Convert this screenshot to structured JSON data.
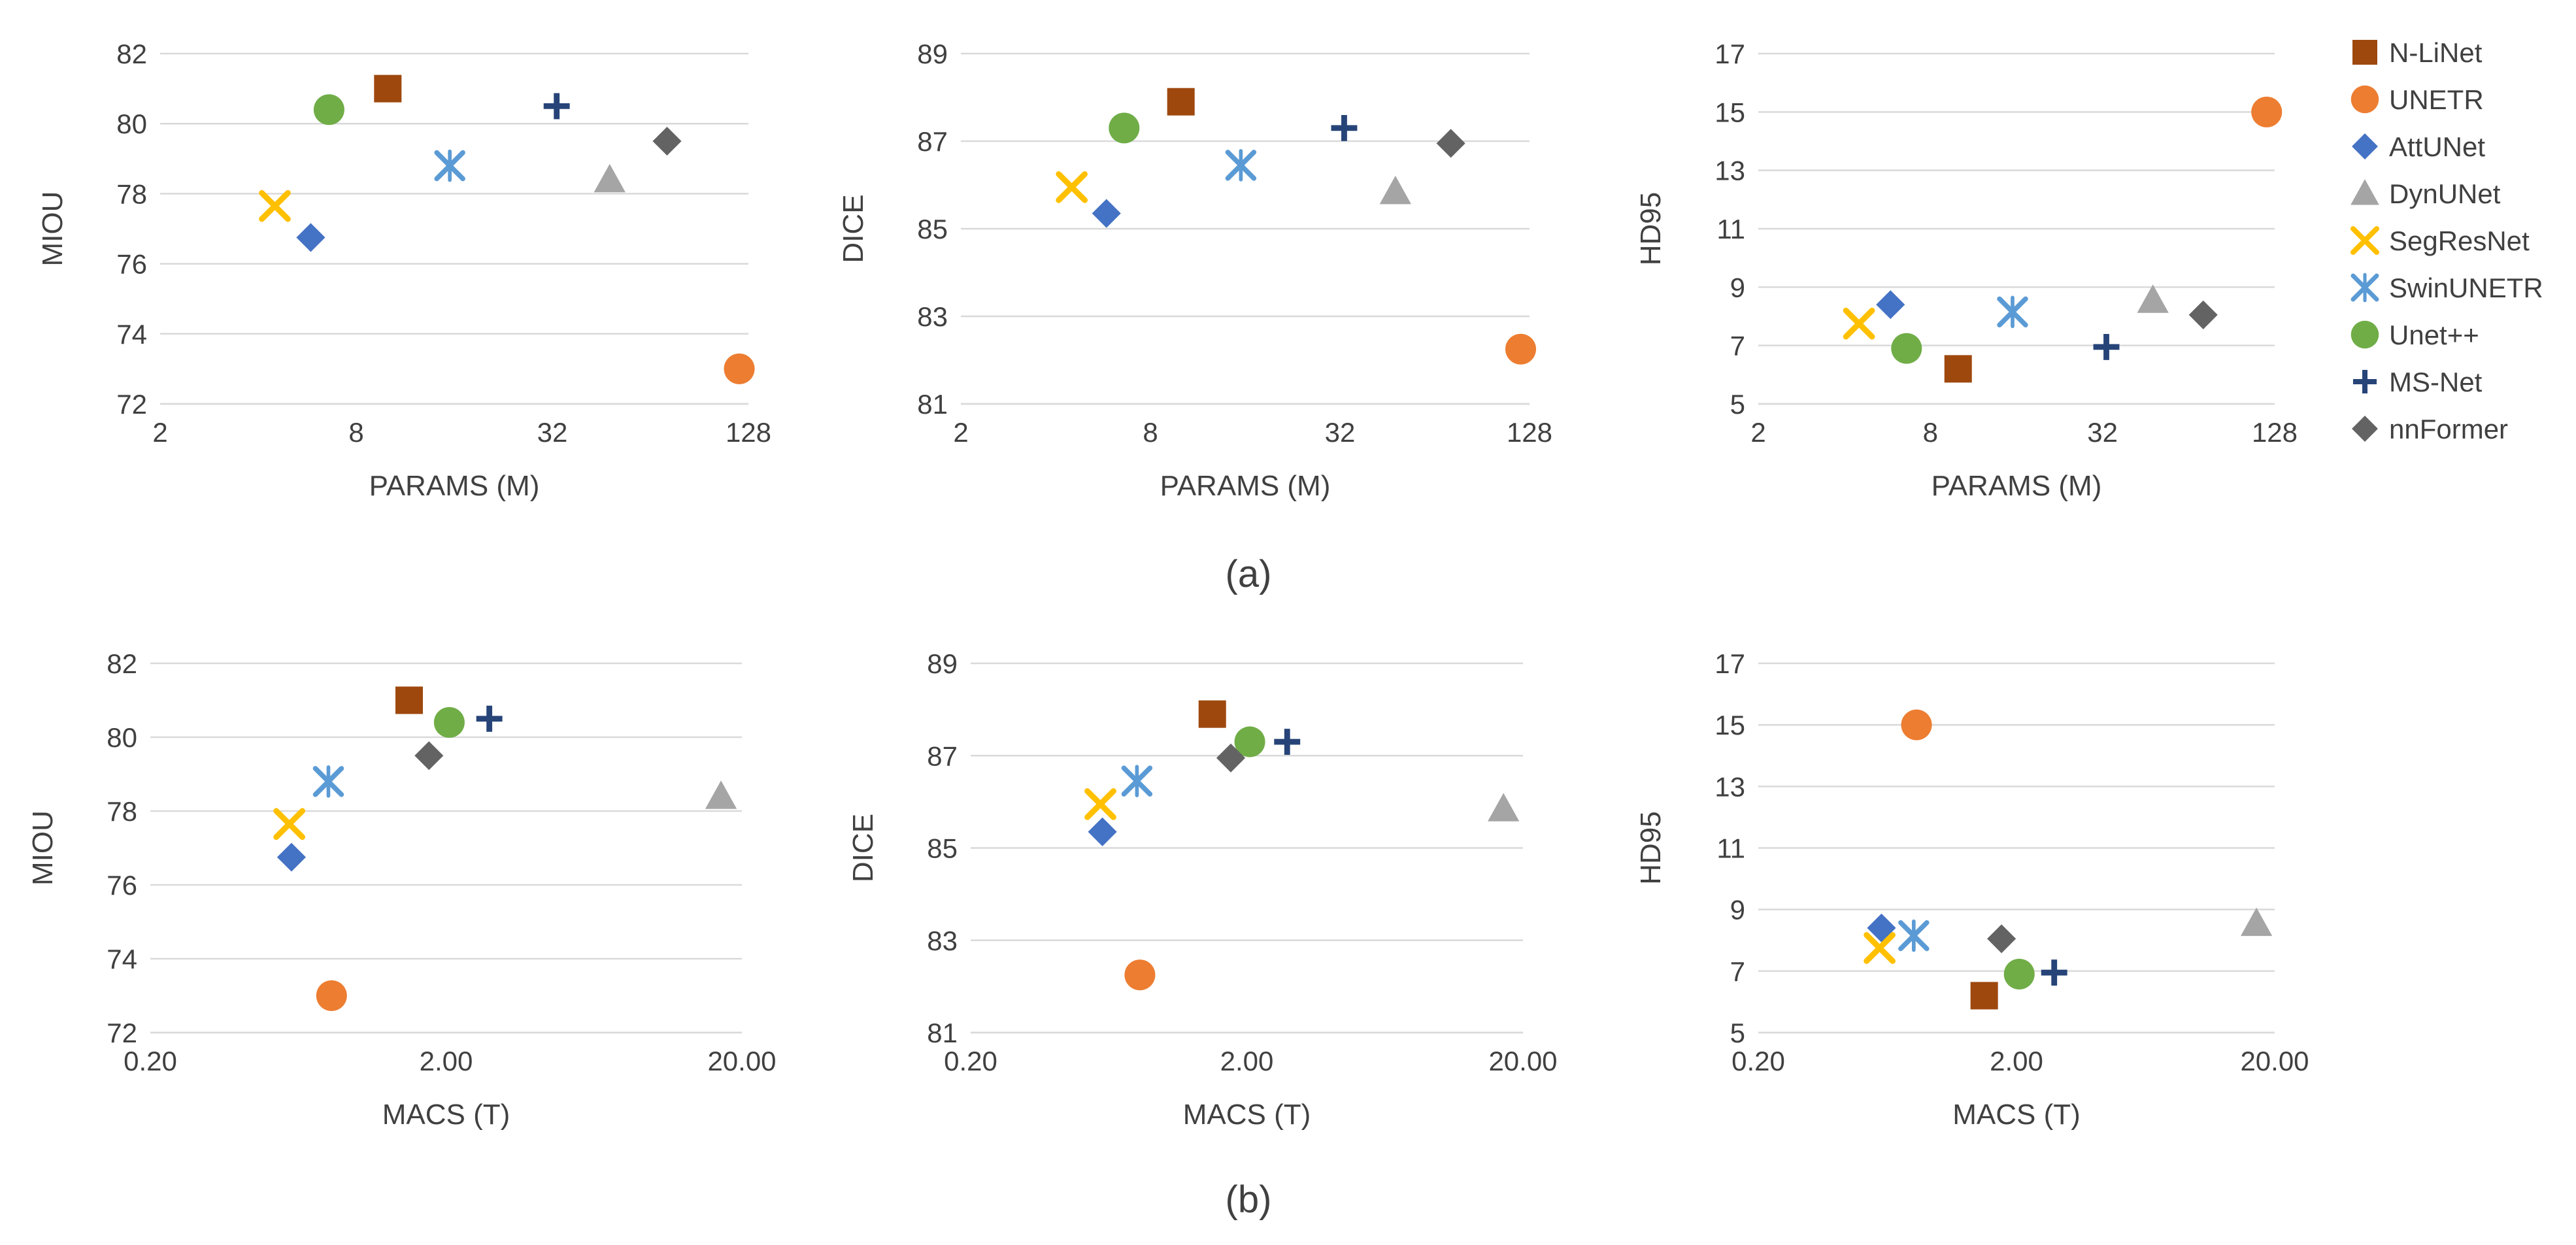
{
  "figure": {
    "legend": [
      {
        "name": "N-LiNet",
        "color": "#9E480E",
        "marker": "square"
      },
      {
        "name": "UNETR",
        "color": "#ED7D31",
        "marker": "circle"
      },
      {
        "name": "AttUNet",
        "color": "#4472C4",
        "marker": "diamond"
      },
      {
        "name": "DynUNet",
        "color": "#A5A5A5",
        "marker": "triangle"
      },
      {
        "name": "SegResNet",
        "color": "#FFC000",
        "marker": "x"
      },
      {
        "name": "SwinUNETR",
        "color": "#5B9BD5",
        "marker": "star"
      },
      {
        "name": "Unet++",
        "color": "#70AD47",
        "marker": "circle"
      },
      {
        "name": "MS-Net",
        "color": "#264478",
        "marker": "plus"
      },
      {
        "name": "nnFormer",
        "color": "#636363",
        "marker": "diamond"
      }
    ],
    "row_labels": [
      "(a)",
      "(b)"
    ]
  },
  "chart_data": [
    {
      "type": "scatter",
      "xscale": "log2",
      "xlabel": "PARAMS (M)",
      "ylabel": "MIOU",
      "xlim": [
        2,
        128
      ],
      "ylim": [
        72,
        82
      ],
      "xticks": [
        "2",
        "8",
        "32",
        "128"
      ],
      "yticks": [
        "72",
        "74",
        "76",
        "78",
        "80",
        "82"
      ],
      "x": {
        "N-LiNet": 10,
        "UNETR": 120,
        "AttUNet": 5.8,
        "DynUNet": 48,
        "SegResNet": 4.5,
        "SwinUNETR": 15.5,
        "Unet++": 6.6,
        "MS-Net": 33,
        "nnFormer": 72
      },
      "y": {
        "N-LiNet": 81.0,
        "UNETR": 73.0,
        "AttUNet": 76.75,
        "DynUNet": 78.4,
        "SegResNet": 77.65,
        "SwinUNETR": 78.8,
        "Unet++": 80.4,
        "MS-Net": 80.5,
        "nnFormer": 79.5
      }
    },
    {
      "type": "scatter",
      "xscale": "log2",
      "xlabel": "PARAMS (M)",
      "ylabel": "DICE",
      "xlim": [
        2,
        128
      ],
      "ylim": [
        81,
        89
      ],
      "xticks": [
        "2",
        "8",
        "32",
        "128"
      ],
      "yticks": [
        "81",
        "83",
        "85",
        "87",
        "89"
      ],
      "x": {
        "N-LiNet": 10,
        "UNETR": 120,
        "AttUNet": 5.8,
        "DynUNet": 48,
        "SegResNet": 4.5,
        "SwinUNETR": 15.5,
        "Unet++": 6.6,
        "MS-Net": 33,
        "nnFormer": 72
      },
      "y": {
        "N-LiNet": 87.9,
        "UNETR": 82.25,
        "AttUNet": 85.35,
        "DynUNet": 85.85,
        "SegResNet": 85.95,
        "SwinUNETR": 86.45,
        "Unet++": 87.3,
        "MS-Net": 87.3,
        "nnFormer": 86.95
      }
    },
    {
      "type": "scatter",
      "xscale": "log2",
      "xlabel": "PARAMS (M)",
      "ylabel": "HD95",
      "xlim": [
        2,
        128
      ],
      "ylim": [
        5,
        17
      ],
      "xticks": [
        "2",
        "8",
        "32",
        "128"
      ],
      "yticks": [
        "5",
        "7",
        "9",
        "11",
        "13",
        "15",
        "17"
      ],
      "x": {
        "N-LiNet": 10,
        "UNETR": 120,
        "AttUNet": 5.8,
        "DynUNet": 48,
        "SegResNet": 4.5,
        "SwinUNETR": 15.5,
        "Unet++": 6.6,
        "MS-Net": 33,
        "nnFormer": 72
      },
      "y": {
        "N-LiNet": 6.2,
        "UNETR": 15.0,
        "AttUNet": 8.4,
        "DynUNet": 8.55,
        "SegResNet": 7.75,
        "SwinUNETR": 8.15,
        "Unet++": 6.9,
        "MS-Net": 6.95,
        "nnFormer": 8.05
      }
    },
    {
      "type": "scatter",
      "xscale": "log10",
      "xlabel": "MACS (T)",
      "ylabel": "MIOU",
      "xlim": [
        0.2,
        20
      ],
      "ylim": [
        72,
        82
      ],
      "xticks": [
        "0.20",
        "2.00",
        "20.00"
      ],
      "yticks": [
        "72",
        "74",
        "76",
        "78",
        "80",
        "82"
      ],
      "x": {
        "N-LiNet": 1.5,
        "UNETR": 0.82,
        "AttUNet": 0.6,
        "DynUNet": 17,
        "SegResNet": 0.59,
        "SwinUNETR": 0.8,
        "Unet++": 2.05,
        "MS-Net": 2.8,
        "nnFormer": 1.75
      },
      "y": {
        "N-LiNet": 81.0,
        "UNETR": 73.0,
        "AttUNet": 76.75,
        "DynUNet": 78.4,
        "SegResNet": 77.65,
        "SwinUNETR": 78.8,
        "Unet++": 80.4,
        "MS-Net": 80.5,
        "nnFormer": 79.5
      }
    },
    {
      "type": "scatter",
      "xscale": "log10",
      "xlabel": "MACS (T)",
      "ylabel": "DICE",
      "xlim": [
        0.2,
        20
      ],
      "ylim": [
        81,
        89
      ],
      "xticks": [
        "0.20",
        "2.00",
        "20.00"
      ],
      "yticks": [
        "81",
        "83",
        "85",
        "87",
        "89"
      ],
      "x": {
        "N-LiNet": 1.5,
        "UNETR": 0.82,
        "AttUNet": 0.6,
        "DynUNet": 17,
        "SegResNet": 0.59,
        "SwinUNETR": 0.8,
        "Unet++": 2.05,
        "MS-Net": 2.8,
        "nnFormer": 1.75
      },
      "y": {
        "N-LiNet": 87.9,
        "UNETR": 82.25,
        "AttUNet": 85.35,
        "DynUNet": 85.85,
        "SegResNet": 85.95,
        "SwinUNETR": 86.45,
        "Unet++": 87.3,
        "MS-Net": 87.3,
        "nnFormer": 86.95
      }
    },
    {
      "type": "scatter",
      "xscale": "log10",
      "xlabel": "MACS (T)",
      "ylabel": "HD95",
      "xlim": [
        0.2,
        20
      ],
      "ylim": [
        5,
        17
      ],
      "xticks": [
        "0.20",
        "2.00",
        "20.00"
      ],
      "yticks": [
        "5",
        "7",
        "9",
        "11",
        "13",
        "15",
        "17"
      ],
      "x": {
        "N-LiNet": 1.5,
        "UNETR": 0.82,
        "AttUNet": 0.6,
        "DynUNet": 17,
        "SegResNet": 0.59,
        "SwinUNETR": 0.8,
        "Unet++": 2.05,
        "MS-Net": 2.8,
        "nnFormer": 1.75
      },
      "y": {
        "N-LiNet": 6.2,
        "UNETR": 15.0,
        "AttUNet": 8.4,
        "DynUNet": 8.55,
        "SegResNet": 7.75,
        "SwinUNETR": 8.15,
        "Unet++": 6.9,
        "MS-Net": 6.95,
        "nnFormer": 8.05
      }
    }
  ]
}
